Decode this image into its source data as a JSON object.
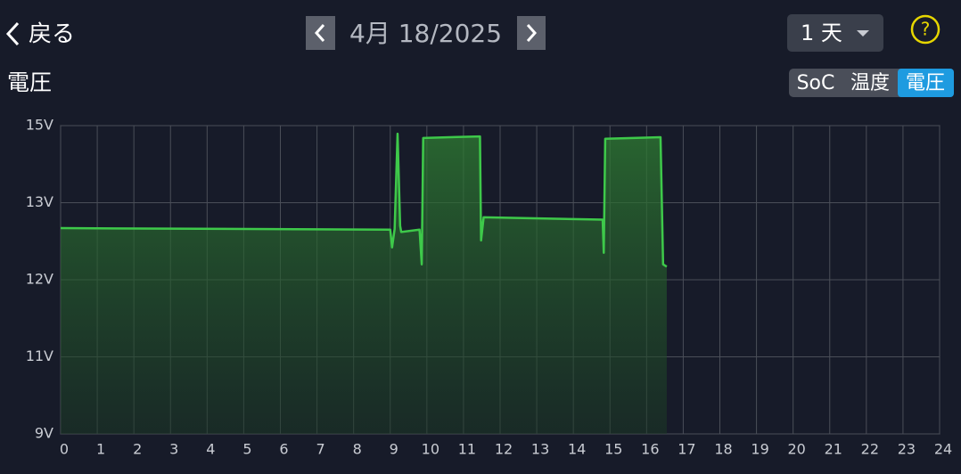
{
  "header": {
    "back": "戻る",
    "date": "4月 18/2025",
    "range": "1 天",
    "help": "?",
    "tabs": [
      "SoC",
      "温度",
      "電圧"
    ]
  },
  "chart_data": {
    "type": "line",
    "title": "電圧",
    "x": [
      0,
      9.0,
      9.05,
      9.12,
      9.2,
      9.27,
      9.3,
      9.8,
      9.86,
      9.9,
      11.45,
      11.48,
      11.55,
      14.8,
      14.83,
      14.87,
      16.38,
      16.45,
      16.55
    ],
    "series": [
      {
        "name": "電圧",
        "color": "#3ec94a",
        "values": [
          12.67,
          12.65,
          12.42,
          12.66,
          14.79,
          12.7,
          12.62,
          12.65,
          12.2,
          14.68,
          14.72,
          12.51,
          12.81,
          12.78,
          12.35,
          14.66,
          14.7,
          12.2,
          12.17
        ]
      }
    ],
    "xlim": [
      0,
      24
    ],
    "xticks": [
      0,
      1,
      2,
      3,
      4,
      5,
      6,
      7,
      8,
      9,
      10,
      11,
      12,
      13,
      14,
      15,
      16,
      17,
      18,
      19,
      20,
      21,
      22,
      23,
      24
    ],
    "ylim": [
      9,
      15
    ],
    "yticks": [
      {
        "value": 9,
        "label": "9V"
      },
      {
        "value": 11,
        "label": "11V"
      },
      {
        "value": 12,
        "label": "12V"
      },
      {
        "value": 13,
        "label": "13V"
      },
      {
        "value": 15,
        "label": "15V"
      }
    ],
    "grid": true
  }
}
